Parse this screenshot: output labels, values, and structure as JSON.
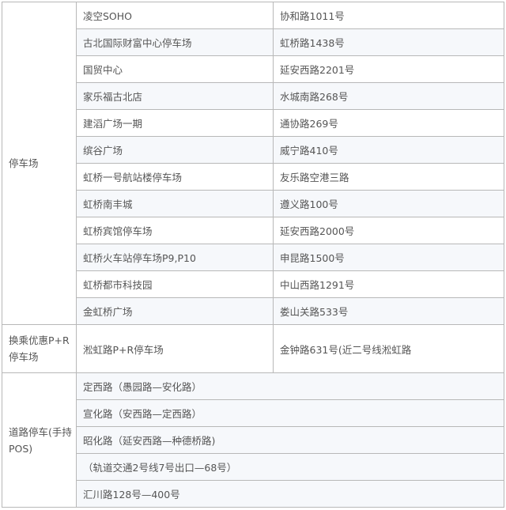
{
  "sections": [
    {
      "category": "停车场",
      "rows": [
        {
          "name": "凌空SOHO",
          "address": "协和路1011号"
        },
        {
          "name": "古北国际财富中心停车场",
          "address": "虹桥路1438号"
        },
        {
          "name": "国贸中心",
          "address": "延安西路2201号"
        },
        {
          "name": "家乐福古北店",
          "address": "水城南路268号"
        },
        {
          "name": "建滔广场一期",
          "address": "通协路269号"
        },
        {
          "name": "缤谷广场",
          "address": "威宁路410号"
        },
        {
          "name": "虹桥一号航站楼停车场",
          "address": "友乐路空港三路"
        },
        {
          "name": "虹桥南丰城",
          "address": "遵义路100号"
        },
        {
          "name": "虹桥宾馆停车场",
          "address": "延安西路2000号"
        },
        {
          "name": "虹桥火车站停车场P9,P10",
          "address": "申昆路1500号"
        },
        {
          "name": "虹桥都市科技园",
          "address": "中山西路1291号"
        },
        {
          "name": "金虹桥广场",
          "address": "娄山关路533号"
        }
      ]
    },
    {
      "category": "换乘优惠P+R停车场",
      "rows": [
        {
          "name": "淞虹路P+R停车场",
          "address": "金钟路631号(近二号线淞虹路"
        }
      ]
    },
    {
      "category": "道路停车(手持POS)",
      "rows": [
        {
          "name": "定西路（愚园路—安化路）"
        },
        {
          "name": "宣化路（安西路—定西路）"
        },
        {
          "name": "昭化路（延安西路—种德桥路)"
        },
        {
          "name": "（轨道交通2号线7号出口—68号）"
        },
        {
          "name": "汇川路128号—400号"
        }
      ]
    }
  ]
}
